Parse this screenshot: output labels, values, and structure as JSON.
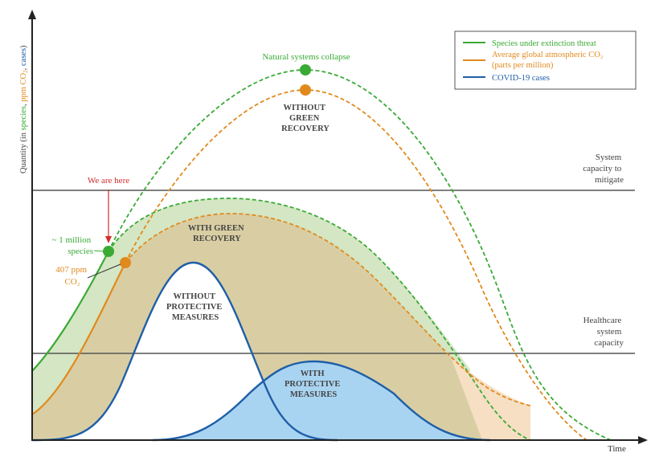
{
  "colors": {
    "green": "#3aaa35",
    "orange": "#e08a1e",
    "blue": "#1f5fa8",
    "red": "#d62b2b",
    "gray": "#555555",
    "green_fill": "#d4e6c3",
    "tan_fill": "#d9cea3",
    "light_blue_fill": "#a9d4f1",
    "peach_fill": "#f6dfc3"
  },
  "axis": {
    "y_label_prefix": "Quantity (in ",
    "y_label_species": "species",
    "y_label_comma1": ", ",
    "y_label_ppm": "ppm CO",
    "y_label_sub": "2",
    "y_label_comma2": ", ",
    "y_label_cases": "cases",
    "y_label_suffix": ")",
    "x_label": "Time"
  },
  "legend": [
    {
      "line1": "Species under extinction threat",
      "line2": "",
      "color": "#3aaa35"
    },
    {
      "line1": "Average global atmospheric CO₂",
      "line2": "(parts per million)",
      "color": "#e08a1e"
    },
    {
      "line1": "COVID-19 cases",
      "line2": "",
      "color": "#1f5fa8"
    }
  ],
  "annotations": {
    "natural_collapse": "Natural systems collapse",
    "without_green": [
      "WITHOUT",
      "GREEN",
      "RECOVERY"
    ],
    "with_green": [
      "WITH GREEN",
      "RECOVERY"
    ],
    "without_protective": [
      "WITHOUT",
      "PROTECTIVE",
      "MEASURES"
    ],
    "with_protective": [
      "WITH",
      "PROTECTIVE",
      "MEASURES"
    ],
    "we_are_here": "We are here",
    "species": [
      "~ 1 million",
      "species"
    ],
    "ppm": [
      "407 ppm",
      "CO₂"
    ],
    "system_capacity": [
      "System",
      "capacity to",
      "mitigate"
    ],
    "healthcare_capacity": [
      "Healthcare",
      "system",
      "capacity"
    ]
  }
}
